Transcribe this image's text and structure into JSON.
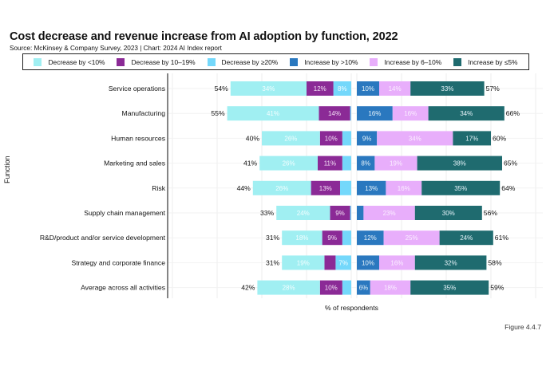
{
  "header": {
    "title": "Cost decrease and revenue increase from AI adoption by function, 2022",
    "subtitle": "Source: McKinsey & Company Survey, 2023 | Chart: 2024 AI Index report"
  },
  "figure_label": "Figure 4.4.7",
  "chart_data": {
    "type": "bar",
    "orientation": "horizontal-diverging-stacked",
    "title": "Cost decrease and revenue increase from AI adoption by function, 2022",
    "xlabel": "% of respondents",
    "ylabel": "Function",
    "grid": true,
    "legend_position": "top",
    "categories": [
      "Service operations",
      "Manufacturing",
      "Human resources",
      "Marketing and sales",
      "Risk",
      "Supply chain management",
      "R&D/product and/or service development",
      "Strategy and corporate finance",
      "Average across all activities"
    ],
    "cost_decrease": {
      "series": [
        {
          "name": "Decrease by <10%",
          "color": "#a0eff2",
          "values": [
            34,
            41,
            26,
            26,
            26,
            24,
            18,
            19,
            28
          ],
          "labeled": [
            true,
            true,
            true,
            true,
            true,
            true,
            true,
            true,
            true
          ]
        },
        {
          "name": "Decrease by 10–19%",
          "color": "#8b2a96",
          "values": [
            12,
            14,
            10,
            11,
            13,
            9,
            9,
            5,
            10
          ],
          "labeled": [
            true,
            true,
            true,
            true,
            true,
            true,
            true,
            false,
            true
          ]
        },
        {
          "name": "Decrease by ≥20%",
          "color": "#74d8fb",
          "values": [
            8,
            0.5,
            4,
            4,
            5,
            0.5,
            4,
            7,
            4
          ],
          "labeled": [
            true,
            false,
            false,
            false,
            false,
            false,
            false,
            true,
            false
          ]
        }
      ],
      "totals": [
        "54%",
        "55%",
        "40%",
        "41%",
        "44%",
        "33%",
        "31%",
        "31%",
        "42%"
      ]
    },
    "revenue_increase": {
      "series": [
        {
          "name": "Increase by >10%",
          "color": "#2a78bf",
          "values": [
            10,
            16,
            9,
            8,
            13,
            3,
            12,
            10,
            6
          ],
          "labeled": [
            true,
            true,
            true,
            true,
            true,
            false,
            true,
            true,
            true
          ]
        },
        {
          "name": "Increase by 6–10%",
          "color": "#e8aefb",
          "values": [
            14,
            16,
            34,
            19,
            16,
            23,
            25,
            16,
            18
          ],
          "labeled": [
            true,
            true,
            true,
            true,
            true,
            true,
            true,
            true,
            true
          ]
        },
        {
          "name": "Increase by ≤5%",
          "color": "#1f6b6f",
          "values": [
            33,
            34,
            17,
            38,
            35,
            30,
            24,
            32,
            35
          ],
          "labeled": [
            true,
            true,
            true,
            true,
            true,
            true,
            true,
            true,
            true
          ]
        }
      ],
      "totals": [
        "57%",
        "66%",
        "60%",
        "65%",
        "64%",
        "56%",
        "61%",
        "58%",
        "59%"
      ]
    },
    "legend": [
      {
        "label": "Decrease by <10%",
        "color": "#a0eff2"
      },
      {
        "label": "Decrease by 10–19%",
        "color": "#8b2a96"
      },
      {
        "label": "Decrease by ≥20%",
        "color": "#74d8fb"
      },
      {
        "label": "Increase by >10%",
        "color": "#2a78bf"
      },
      {
        "label": "Increase by 6–10%",
        "color": "#e8aefb"
      },
      {
        "label": "Increase by ≤5%",
        "color": "#1f6b6f"
      }
    ],
    "xlim_each_side": [
      0,
      80
    ]
  }
}
